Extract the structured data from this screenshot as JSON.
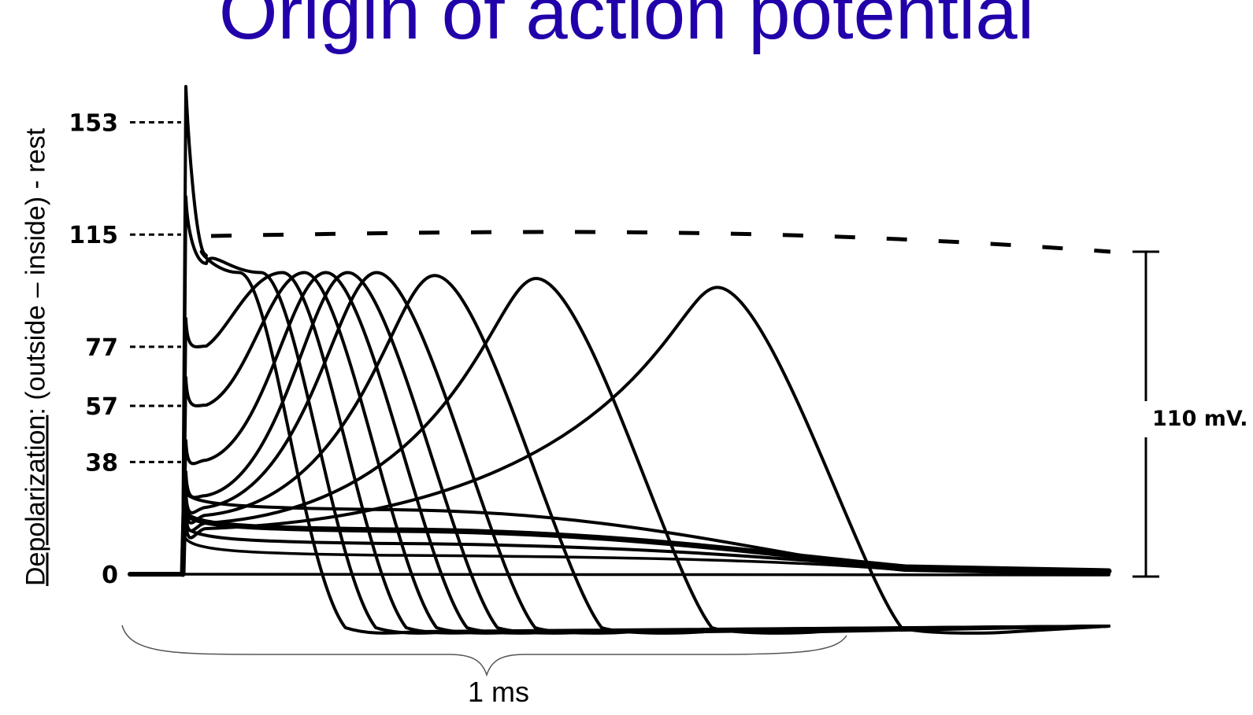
{
  "colors": {
    "title": "#2200aa",
    "ink": "#000000",
    "brace": "#555555"
  },
  "chart_data": {
    "type": "line",
    "title": "Origin of action potential",
    "ylabel_underlined": "Depolarization",
    "ylabel_rest": ": (outside – inside) - rest",
    "xlabel": "",
    "ytick_labels": [
      "153",
      "115",
      "77",
      "57",
      "38",
      "0"
    ],
    "stimulus_levels_mV": [
      153,
      115,
      77,
      57,
      38,
      0
    ],
    "scale_bar_label": "110 mV.",
    "scale_bar_mV": 110,
    "time_bracket_label": "1 ms",
    "time_bracket_ms": 1,
    "series": [
      {
        "peak_time_ms": 0.08,
        "peak_mV": 100
      },
      {
        "peak_time_ms": 0.11,
        "peak_mV": 100
      },
      {
        "peak_time_ms": 0.14,
        "peak_mV": 100
      },
      {
        "peak_time_ms": 0.17,
        "peak_mV": 100
      },
      {
        "peak_time_ms": 0.2,
        "peak_mV": 100
      },
      {
        "peak_time_ms": 0.23,
        "peak_mV": 100
      },
      {
        "peak_time_ms": 0.27,
        "peak_mV": 100
      },
      {
        "peak_time_ms": 0.35,
        "peak_mV": 99
      },
      {
        "peak_time_ms": 0.49,
        "peak_mV": 98
      },
      {
        "peak_time_ms": 0.74,
        "peak_mV": 95
      }
    ],
    "sodium_equilibrium_line": "dashed"
  }
}
